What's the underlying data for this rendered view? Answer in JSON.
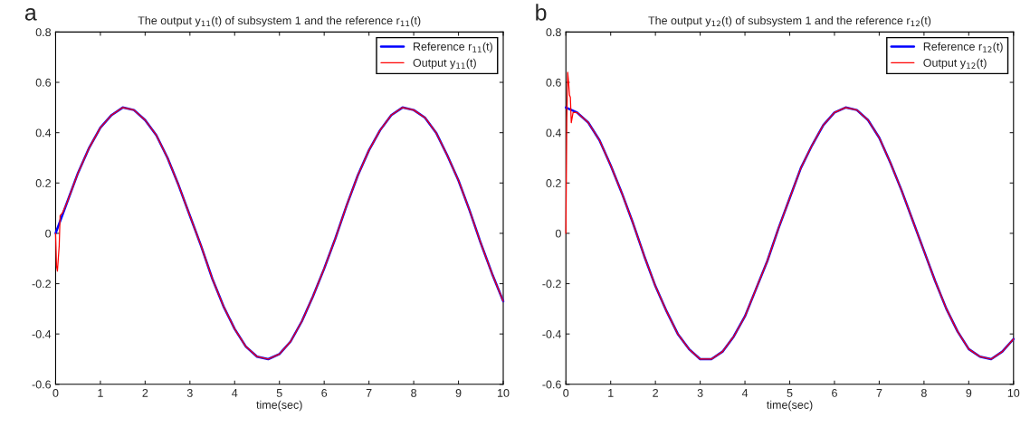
{
  "chart_data": [
    {
      "type": "line",
      "title": "The output y$_{11}$(t) of subsystem 1 and the reference r$_{11}$(t)",
      "xlabel": "time(sec)",
      "annotations": [
        "a"
      ],
      "xlim": [
        0,
        10
      ],
      "xticks": [
        0,
        1,
        2,
        3,
        4,
        5,
        6,
        7,
        8,
        9,
        10
      ],
      "ylim": [
        -0.6,
        0.8
      ],
      "yticks": [
        -0.6,
        -0.4,
        -0.2,
        0,
        0.2,
        0.4,
        0.6,
        0.8
      ],
      "grid": false,
      "legend": "top right",
      "line_style": "solid",
      "marker": "none",
      "series": [
        {
          "name": "Reference r$_{11}$(t)",
          "color": "#0000ff",
          "x": [
            0,
            0.25,
            0.5,
            0.75,
            1,
            1.25,
            1.5,
            1.75,
            2,
            2.25,
            2.5,
            2.75,
            3,
            3.25,
            3.5,
            3.75,
            4,
            4.25,
            4.5,
            4.75,
            5,
            5.25,
            5.5,
            5.75,
            6,
            6.25,
            6.5,
            6.75,
            7,
            7.25,
            7.5,
            7.75,
            8,
            8.25,
            8.5,
            8.75,
            9,
            9.25,
            9.5,
            9.75,
            10
          ],
          "values": [
            0,
            0.12,
            0.24,
            0.34,
            0.42,
            0.47,
            0.5,
            0.49,
            0.45,
            0.39,
            0.3,
            0.19,
            0.07,
            -0.05,
            -0.18,
            -0.29,
            -0.38,
            -0.45,
            -0.49,
            -0.5,
            -0.48,
            -0.43,
            -0.35,
            -0.25,
            -0.14,
            -0.02,
            0.11,
            0.23,
            0.33,
            0.41,
            0.47,
            0.5,
            0.49,
            0.46,
            0.4,
            0.31,
            0.21,
            0.09,
            -0.04,
            -0.16,
            -0.27
          ]
        },
        {
          "name": "Output y$_{11}$(t)",
          "color": "#ff0000",
          "x": [
            0,
            0.02,
            0.04,
            0.06,
            0.08,
            0.1,
            0.15,
            0.25,
            0.5,
            0.75,
            1,
            1.25,
            1.5,
            1.75,
            2,
            2.25,
            2.5,
            2.75,
            3,
            3.25,
            3.5,
            3.75,
            4,
            4.25,
            4.5,
            4.75,
            5,
            5.25,
            5.5,
            5.75,
            6,
            6.25,
            6.5,
            6.75,
            7,
            7.25,
            7.5,
            7.75,
            8,
            8.25,
            8.5,
            8.75,
            9,
            9.25,
            9.5,
            9.75,
            10
          ],
          "values": [
            0,
            -0.13,
            -0.15,
            -0.1,
            -0.05,
            0.07,
            0.08,
            0.12,
            0.24,
            0.34,
            0.42,
            0.47,
            0.5,
            0.49,
            0.45,
            0.39,
            0.3,
            0.19,
            0.07,
            -0.05,
            -0.18,
            -0.29,
            -0.38,
            -0.45,
            -0.49,
            -0.5,
            -0.48,
            -0.43,
            -0.35,
            -0.25,
            -0.14,
            -0.02,
            0.11,
            0.23,
            0.33,
            0.41,
            0.47,
            0.5,
            0.49,
            0.46,
            0.4,
            0.31,
            0.21,
            0.09,
            -0.04,
            -0.16,
            -0.27
          ]
        }
      ]
    },
    {
      "type": "line",
      "title": "The output y$_{12}$(t) of subsystem 1 and the reference r$_{12}$(t)",
      "xlabel": "time(sec)",
      "annotations": [
        "b"
      ],
      "xlim": [
        0,
        10
      ],
      "xticks": [
        0,
        1,
        2,
        3,
        4,
        5,
        6,
        7,
        8,
        9,
        10
      ],
      "ylim": [
        -0.6,
        0.8
      ],
      "yticks": [
        -0.6,
        -0.4,
        -0.2,
        0,
        0.2,
        0.4,
        0.6,
        0.8
      ],
      "grid": false,
      "legend": "top right",
      "line_style": "solid",
      "marker": "none",
      "series": [
        {
          "name": "Reference r$_{12}$(t)",
          "color": "#0000ff",
          "x": [
            0,
            0.25,
            0.5,
            0.75,
            1,
            1.25,
            1.5,
            1.75,
            2,
            2.25,
            2.5,
            2.75,
            3,
            3.25,
            3.5,
            3.75,
            4,
            4.25,
            4.5,
            4.75,
            5,
            5.25,
            5.5,
            5.75,
            6,
            6.25,
            6.5,
            6.75,
            7,
            7.25,
            7.5,
            7.75,
            8,
            8.25,
            8.5,
            8.75,
            9,
            9.25,
            9.5,
            9.75,
            10
          ],
          "values": [
            0.5,
            0.48,
            0.44,
            0.37,
            0.27,
            0.16,
            0.04,
            -0.09,
            -0.21,
            -0.31,
            -0.4,
            -0.46,
            -0.5,
            -0.5,
            -0.47,
            -0.41,
            -0.33,
            -0.22,
            -0.11,
            0.02,
            0.14,
            0.26,
            0.35,
            0.43,
            0.48,
            0.5,
            0.49,
            0.45,
            0.38,
            0.28,
            0.17,
            0.05,
            -0.07,
            -0.19,
            -0.3,
            -0.39,
            -0.46,
            -0.49,
            -0.5,
            -0.47,
            -0.42
          ]
        },
        {
          "name": "Output y$_{12}$(t)",
          "color": "#ff0000",
          "x": [
            0,
            0.02,
            0.04,
            0.06,
            0.08,
            0.1,
            0.12,
            0.16,
            0.25,
            0.5,
            0.75,
            1,
            1.25,
            1.5,
            1.75,
            2,
            2.25,
            2.5,
            2.75,
            3,
            3.25,
            3.5,
            3.75,
            4,
            4.25,
            4.5,
            4.75,
            5,
            5.25,
            5.5,
            5.75,
            6,
            6.25,
            6.5,
            6.75,
            7,
            7.25,
            7.5,
            7.75,
            8,
            8.25,
            8.5,
            8.75,
            9,
            9.25,
            9.5,
            9.75,
            10
          ],
          "values": [
            0,
            0.45,
            0.64,
            0.6,
            0.55,
            0.54,
            0.44,
            0.48,
            0.48,
            0.44,
            0.37,
            0.27,
            0.16,
            0.04,
            -0.09,
            -0.21,
            -0.31,
            -0.4,
            -0.46,
            -0.5,
            -0.5,
            -0.47,
            -0.41,
            -0.33,
            -0.22,
            -0.11,
            0.02,
            0.14,
            0.26,
            0.35,
            0.43,
            0.48,
            0.5,
            0.49,
            0.45,
            0.38,
            0.28,
            0.17,
            0.05,
            -0.07,
            -0.19,
            -0.3,
            -0.39,
            -0.46,
            -0.49,
            -0.5,
            -0.47,
            -0.42
          ]
        }
      ]
    }
  ]
}
